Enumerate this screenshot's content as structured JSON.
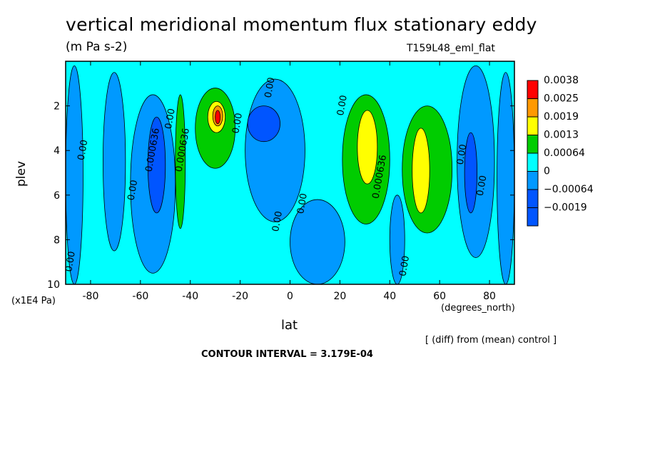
{
  "figure": {
    "title": "vertical meridional momentum flux stationary eddy",
    "units_label": "(m Pa s-2)",
    "dataset_label": "T159L48_eml_flat",
    "y_axis_units": "(x1E4 Pa)",
    "x_axis_units": "(degrees_north)",
    "diff_note": "[ (diff) from (mean) control ]",
    "contour_interval": "CONTOUR INTERVAL = 3.179E-04"
  },
  "chart_data": {
    "type": "heatmap",
    "xlabel": "lat",
    "ylabel": "plev",
    "xlim": [
      -90,
      90
    ],
    "ylim": [
      10,
      0
    ],
    "x_ticks": [
      -80,
      -60,
      -40,
      -20,
      0,
      20,
      40,
      60,
      80
    ],
    "y_ticks": [
      2,
      4,
      6,
      8,
      10
    ],
    "legend_placement": "right",
    "colorbar": [
      {
        "label": "0.0038",
        "color": "#ff0000"
      },
      {
        "label": "0.0025",
        "color": "#ff9900"
      },
      {
        "label": "0.0019",
        "color": "#ffff00"
      },
      {
        "label": "0.0013",
        "color": "#00cc00"
      },
      {
        "label": "0.00064",
        "color": "#00ffff"
      },
      {
        "label": "0",
        "color": "#0099ff"
      },
      {
        "label": "−0.00064",
        "color": "#0055ff"
      },
      {
        "label": "−0.0019",
        "color": ""
      }
    ],
    "field_colors": {
      "cyan": "#00ffff",
      "mid_blue": "#0099ff",
      "dark_blue": "#0055ff",
      "green": "#00cc00",
      "yellow": "#ffff00",
      "orange": "#ff9900",
      "red": "#ff0000"
    },
    "regions": [
      {
        "level": "mid_blue",
        "lat": [
          -90,
          -83
        ],
        "plev": [
          0.2,
          10
        ]
      },
      {
        "level": "mid_blue",
        "lat": [
          -75,
          -66
        ],
        "plev": [
          0.5,
          8.5
        ]
      },
      {
        "level": "mid_blue",
        "lat": [
          -64,
          -46
        ],
        "plev": [
          1.5,
          9.5
        ]
      },
      {
        "level": "dark_blue",
        "lat": [
          -57,
          -50
        ],
        "plev": [
          2.5,
          6.8
        ]
      },
      {
        "level": "green",
        "lat": [
          -46,
          -42
        ],
        "plev": [
          1.5,
          7.5
        ]
      },
      {
        "level": "mid_blue",
        "lat": [
          -18,
          6
        ],
        "plev": [
          0.8,
          7.2
        ]
      },
      {
        "level": "dark_blue",
        "lat": [
          -17,
          -4
        ],
        "plev": [
          2,
          3.6
        ]
      },
      {
        "level": "green",
        "lat": [
          -38,
          -22
        ],
        "plev": [
          1.2,
          4.8
        ]
      },
      {
        "level": "yellow",
        "lat": [
          -33,
          -26
        ],
        "plev": [
          1.8,
          3.2
        ]
      },
      {
        "level": "orange",
        "lat": [
          -31,
          -27
        ],
        "plev": [
          2,
          2.9
        ]
      },
      {
        "level": "red",
        "lat": [
          -30,
          -28
        ],
        "plev": [
          2.2,
          2.8
        ]
      },
      {
        "level": "mid_blue",
        "lat": [
          0,
          22
        ],
        "plev": [
          6.2,
          10
        ]
      },
      {
        "level": "green",
        "lat": [
          21,
          40
        ],
        "plev": [
          1.5,
          7.3
        ]
      },
      {
        "level": "yellow",
        "lat": [
          27,
          35
        ],
        "plev": [
          2.2,
          5.5
        ]
      },
      {
        "level": "mid_blue",
        "lat": [
          40,
          46
        ],
        "plev": [
          6,
          10
        ]
      },
      {
        "level": "green",
        "lat": [
          45,
          65
        ],
        "plev": [
          2,
          7.7
        ]
      },
      {
        "level": "yellow",
        "lat": [
          49,
          56
        ],
        "plev": [
          3,
          6.8
        ]
      },
      {
        "level": "mid_blue",
        "lat": [
          67,
          82
        ],
        "plev": [
          0.2,
          8.8
        ]
      },
      {
        "level": "dark_blue",
        "lat": [
          70,
          75
        ],
        "plev": [
          3.2,
          6.8
        ]
      },
      {
        "level": "mid_blue",
        "lat": [
          83,
          90
        ],
        "plev": [
          0.5,
          10
        ]
      }
    ],
    "contour_labels": [
      {
        "text": "0.00",
        "lat": -82,
        "plev": 4
      },
      {
        "text": "0.00",
        "lat": -62,
        "plev": 5.8
      },
      {
        "text": "0.000636",
        "lat": -54,
        "plev": 4
      },
      {
        "text": "0.00",
        "lat": -47,
        "plev": 2.6
      },
      {
        "text": "0.000636",
        "lat": -42,
        "plev": 4
      },
      {
        "text": "0.00",
        "lat": -20,
        "plev": 2.8
      },
      {
        "text": "0.00",
        "lat": -7,
        "plev": 1.2
      },
      {
        "text": "0.00",
        "lat": 6,
        "plev": 6.4
      },
      {
        "text": "0.00",
        "lat": -4,
        "plev": 7.2
      },
      {
        "text": "0.00",
        "lat": 22,
        "plev": 2
      },
      {
        "text": "0.000636",
        "lat": 37,
        "plev": 5.2
      },
      {
        "text": "0.00",
        "lat": 47,
        "plev": 9.2
      },
      {
        "text": "0.00",
        "lat": 70,
        "plev": 4.2
      },
      {
        "text": "0.00",
        "lat": 78,
        "plev": 5.6
      },
      {
        "text": "0.00",
        "lat": -87,
        "plev": 9
      }
    ]
  }
}
